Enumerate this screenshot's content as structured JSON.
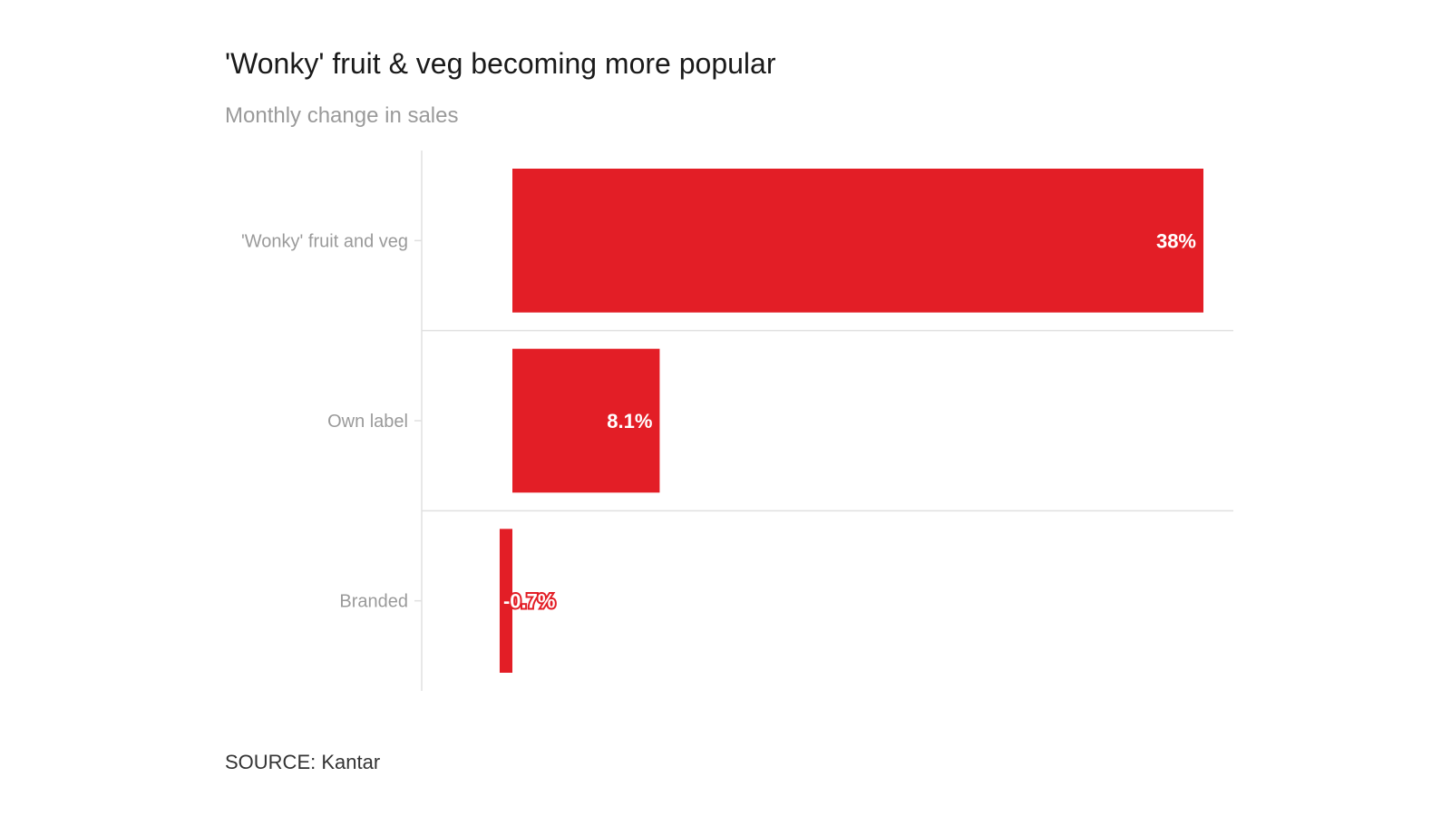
{
  "title": "'Wonky' fruit & veg becoming more popular",
  "subtitle": "Monthly change in sales",
  "source": "SOURCE: Kantar",
  "colors": {
    "bar": "#e31e26",
    "grid": "#e0e0e0",
    "axis": "#e0e0e0"
  },
  "chart_data": {
    "type": "bar",
    "orientation": "horizontal",
    "categories": [
      "'Wonky' fruit and veg",
      "Own label",
      "Branded"
    ],
    "values": [
      38,
      8.1,
      -0.7
    ],
    "value_labels": [
      "38%",
      "8.1%",
      "-0.7%"
    ],
    "title": "'Wonky' fruit & veg becoming more popular",
    "subtitle": "Monthly change in sales",
    "xlabel": "",
    "ylabel": "",
    "xlim": [
      -5,
      40
    ],
    "grid": false,
    "legend": "none"
  }
}
